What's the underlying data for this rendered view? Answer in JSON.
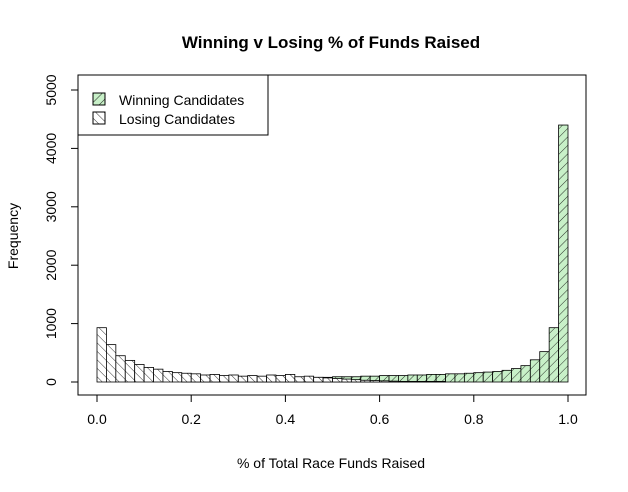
{
  "chart_data": {
    "type": "bar",
    "title": "Winning v Losing % of Funds Raised",
    "xlabel": "% of Total Race Funds Raised",
    "ylabel": "Frequency",
    "xlim": [
      0,
      1
    ],
    "ylim": [
      0,
      5000
    ],
    "x_ticks": [
      "0.0",
      "0.2",
      "0.4",
      "0.6",
      "0.8",
      "1.0"
    ],
    "y_ticks": [
      "0",
      "1000",
      "2000",
      "3000",
      "4000",
      "5000"
    ],
    "bin_width": 0.02,
    "bin_starts": [
      0.0,
      0.02,
      0.04,
      0.06,
      0.08,
      0.1,
      0.12,
      0.14,
      0.16,
      0.18,
      0.2,
      0.22,
      0.24,
      0.26,
      0.28,
      0.3,
      0.32,
      0.34,
      0.36,
      0.38,
      0.4,
      0.42,
      0.44,
      0.46,
      0.48,
      0.5,
      0.52,
      0.54,
      0.56,
      0.58,
      0.6,
      0.62,
      0.64,
      0.66,
      0.68,
      0.7,
      0.72,
      0.74,
      0.76,
      0.78,
      0.8,
      0.82,
      0.84,
      0.86,
      0.88,
      0.9,
      0.92,
      0.94,
      0.96,
      0.98
    ],
    "legend_position": "top-left",
    "series": [
      {
        "name": "Winning Candidates",
        "fill": "#c8f0c8",
        "hatch": "forward",
        "values": [
          0,
          0,
          0,
          0,
          0,
          0,
          0,
          0,
          0,
          20,
          30,
          40,
          40,
          50,
          50,
          60,
          60,
          60,
          70,
          70,
          70,
          80,
          80,
          80,
          80,
          90,
          90,
          90,
          100,
          100,
          110,
          110,
          110,
          120,
          120,
          130,
          130,
          140,
          140,
          150,
          160,
          170,
          180,
          200,
          230,
          280,
          380,
          520,
          930,
          4400
        ]
      },
      {
        "name": "Losing Candidates",
        "fill": "#ffffff",
        "hatch": "backward",
        "values": [
          930,
          640,
          450,
          370,
          300,
          250,
          220,
          180,
          160,
          150,
          140,
          120,
          130,
          110,
          120,
          100,
          110,
          100,
          120,
          110,
          130,
          90,
          100,
          80,
          70,
          60,
          50,
          40,
          30,
          25,
          20,
          15,
          10,
          10,
          10,
          10,
          10,
          0,
          0,
          0,
          0,
          0,
          0,
          0,
          0,
          0,
          0,
          0,
          0,
          0
        ]
      }
    ]
  }
}
